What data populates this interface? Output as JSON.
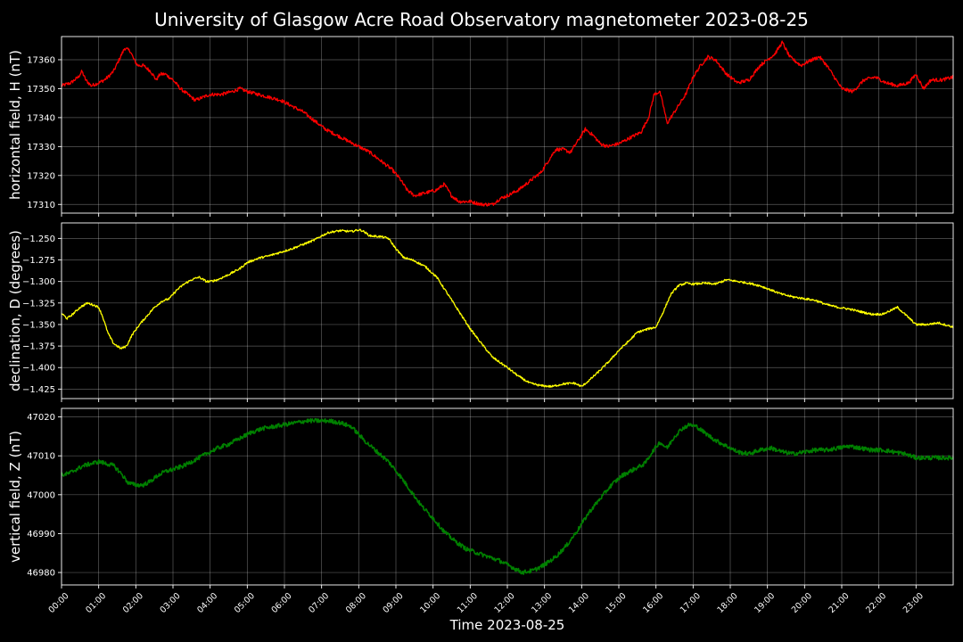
{
  "figure": {
    "title": "University of Glasgow Acre Road Observatory magnetometer 2023-08-25",
    "xlabel": "Time 2023-08-25",
    "background": "#000000",
    "foreground": "#ffffff"
  },
  "chart_data": [
    {
      "type": "line",
      "ylabel": "horizontal field, H (nT)",
      "color": "#ff0000",
      "ylim": [
        17307,
        17368
      ],
      "yticks": [
        17310,
        17320,
        17330,
        17340,
        17350,
        17360
      ],
      "ytick_labels": [
        "17310",
        "17320",
        "17330",
        "17340",
        "17350",
        "17360"
      ],
      "xlim": [
        0,
        24
      ],
      "grid": true,
      "noise": 0.6,
      "series": [
        {
          "x": [
            0,
            0.25,
            0.45,
            0.55,
            0.65,
            0.8,
            1.0,
            1.15,
            1.25,
            1.4,
            1.55,
            1.7,
            1.85,
            1.95,
            2.05,
            2.2,
            2.4,
            2.55,
            2.65,
            2.8,
            3.0,
            3.2,
            3.4,
            3.6,
            3.8,
            4.0,
            4.3,
            4.6,
            4.8,
            5.0,
            5.3,
            5.6,
            5.9,
            6.2,
            6.5,
            6.8,
            7.1,
            7.4,
            7.7,
            8.0,
            8.3,
            8.6,
            8.9,
            9.1,
            9.3,
            9.5,
            9.8,
            10.1,
            10.3,
            10.5,
            10.7,
            11.0,
            11.3,
            11.6,
            11.8,
            12.0,
            12.3,
            12.6,
            12.9,
            13.1,
            13.3,
            13.5,
            13.7,
            13.9,
            14.1,
            14.3,
            14.5,
            14.7,
            15.0,
            15.3,
            15.6,
            15.8,
            15.95,
            16.1,
            16.2,
            16.3,
            16.5,
            16.8,
            17.0,
            17.2,
            17.4,
            17.6,
            17.9,
            18.2,
            18.5,
            18.8,
            19.0,
            19.2,
            19.4,
            19.6,
            19.9,
            20.2,
            20.4,
            20.6,
            20.8,
            21.0,
            21.3,
            21.6,
            21.9,
            22.2,
            22.5,
            22.8,
            23.0,
            23.2,
            23.4,
            23.7,
            24.0
          ],
          "y": [
            17351,
            17352,
            17354,
            17356,
            17353,
            17351,
            17352,
            17353,
            17354,
            17356,
            17360,
            17364,
            17363,
            17360,
            17358,
            17358,
            17356,
            17353,
            17355,
            17355,
            17353,
            17350,
            17348,
            17346,
            17347,
            17348,
            17348,
            17349,
            17350,
            17349,
            17348,
            17347,
            17346,
            17344,
            17342,
            17339,
            17336,
            17334,
            17332,
            17330,
            17328,
            17325,
            17322,
            17319,
            17315,
            17313,
            17314,
            17315,
            17317,
            17313,
            17311,
            17311,
            17310,
            17310,
            17312,
            17313,
            17315,
            17318,
            17321,
            17325,
            17329,
            17329,
            17328,
            17332,
            17336,
            17334,
            17331,
            17330,
            17331,
            17333,
            17335,
            17340,
            17348,
            17349,
            17344,
            17338,
            17342,
            17348,
            17354,
            17358,
            17361,
            17360,
            17355,
            17352,
            17353,
            17358,
            17360,
            17362,
            17366,
            17361,
            17358,
            17360,
            17361,
            17358,
            17354,
            17350,
            17349,
            17353,
            17354,
            17352,
            17351,
            17352,
            17355,
            17350,
            17353,
            17353,
            17354
          ]
        }
      ]
    },
    {
      "type": "line",
      "ylabel": "declination, D (degrees)",
      "color": "#ffff00",
      "ylim": [
        -1.436,
        -1.232
      ],
      "yticks": [
        -1.425,
        -1.4,
        -1.375,
        -1.35,
        -1.325,
        -1.3,
        -1.275,
        -1.25
      ],
      "ytick_labels": [
        "−1.425",
        "−1.400",
        "−1.375",
        "−1.350",
        "−1.325",
        "−1.300",
        "−1.275",
        "−1.250"
      ],
      "xlim": [
        0,
        24
      ],
      "grid": true,
      "noise": 0.0012,
      "series": [
        {
          "x": [
            0,
            0.15,
            0.3,
            0.5,
            0.7,
            0.9,
            1.0,
            1.1,
            1.25,
            1.4,
            1.5,
            1.6,
            1.75,
            1.9,
            2.1,
            2.3,
            2.5,
            2.7,
            2.9,
            3.1,
            3.3,
            3.5,
            3.7,
            3.9,
            4.0,
            4.2,
            4.5,
            4.8,
            5.0,
            5.3,
            5.6,
            5.9,
            6.2,
            6.5,
            6.8,
            7.0,
            7.2,
            7.5,
            7.8,
            8.0,
            8.1,
            8.3,
            8.6,
            8.8,
            9.0,
            9.2,
            9.5,
            9.8,
            10.1,
            10.4,
            10.7,
            11.0,
            11.3,
            11.6,
            12.0,
            12.3,
            12.6,
            12.9,
            13.2,
            13.5,
            13.8,
            14.0,
            14.2,
            14.5,
            14.8,
            15.0,
            15.3,
            15.5,
            15.8,
            16.0,
            16.2,
            16.4,
            16.6,
            16.8,
            17.0,
            17.3,
            17.6,
            17.9,
            18.2,
            18.5,
            18.8,
            19.1,
            19.4,
            19.7,
            20.0,
            20.3,
            20.6,
            20.9,
            21.2,
            21.5,
            21.8,
            22.1,
            22.3,
            22.5,
            22.7,
            23.0,
            23.3,
            23.6,
            24.0
          ],
          "y": [
            -1.337,
            -1.343,
            -1.338,
            -1.33,
            -1.325,
            -1.328,
            -1.33,
            -1.34,
            -1.36,
            -1.372,
            -1.375,
            -1.378,
            -1.375,
            -1.362,
            -1.35,
            -1.34,
            -1.33,
            -1.323,
            -1.32,
            -1.31,
            -1.303,
            -1.298,
            -1.295,
            -1.3,
            -1.3,
            -1.298,
            -1.292,
            -1.285,
            -1.278,
            -1.273,
            -1.27,
            -1.266,
            -1.262,
            -1.257,
            -1.252,
            -1.247,
            -1.243,
            -1.241,
            -1.242,
            -1.24,
            -1.241,
            -1.247,
            -1.248,
            -1.25,
            -1.262,
            -1.272,
            -1.276,
            -1.283,
            -1.295,
            -1.315,
            -1.335,
            -1.355,
            -1.372,
            -1.388,
            -1.4,
            -1.41,
            -1.418,
            -1.421,
            -1.422,
            -1.419,
            -1.418,
            -1.422,
            -1.415,
            -1.403,
            -1.39,
            -1.38,
            -1.368,
            -1.359,
            -1.355,
            -1.353,
            -1.335,
            -1.315,
            -1.305,
            -1.302,
            -1.303,
            -1.302,
            -1.303,
            -1.298,
            -1.3,
            -1.302,
            -1.305,
            -1.31,
            -1.315,
            -1.318,
            -1.32,
            -1.322,
            -1.327,
            -1.33,
            -1.332,
            -1.335,
            -1.338,
            -1.338,
            -1.334,
            -1.33,
            -1.338,
            -1.35,
            -1.35,
            -1.348,
            -1.353
          ]
        }
      ]
    },
    {
      "type": "line",
      "ylabel": "vertical field, Z (nT)",
      "color": "#008000",
      "ylim": [
        46976.8,
        47022.2
      ],
      "yticks": [
        46980,
        46990,
        47000,
        47010,
        47020
      ],
      "ytick_labels": [
        "46980",
        "46990",
        "47000",
        "47010",
        "47020"
      ],
      "xlim": [
        0,
        24
      ],
      "grid": true,
      "noise": 0.55,
      "series": [
        {
          "x": [
            0,
            0.2,
            0.4,
            0.6,
            0.8,
            1.0,
            1.2,
            1.4,
            1.6,
            1.8,
            2.0,
            2.2,
            2.4,
            2.6,
            2.8,
            3.0,
            3.3,
            3.6,
            3.9,
            4.2,
            4.5,
            4.8,
            5.1,
            5.4,
            5.7,
            6.0,
            6.3,
            6.6,
            6.9,
            7.2,
            7.5,
            7.8,
            8.0,
            8.2,
            8.5,
            8.8,
            9.1,
            9.4,
            9.7,
            10.0,
            10.3,
            10.6,
            10.9,
            11.2,
            11.5,
            11.8,
            12.1,
            12.4,
            12.7,
            13.0,
            13.3,
            13.6,
            13.9,
            14.2,
            14.5,
            14.8,
            15.1,
            15.4,
            15.7,
            15.9,
            16.1,
            16.3,
            16.5,
            16.7,
            16.9,
            17.1,
            17.3,
            17.6,
            17.9,
            18.2,
            18.5,
            18.8,
            19.1,
            19.4,
            19.7,
            20.0,
            20.3,
            20.6,
            20.9,
            21.2,
            21.5,
            21.8,
            22.1,
            22.4,
            22.7,
            23.0,
            23.3,
            23.6,
            24.0
          ],
          "y": [
            47005,
            47005.5,
            47006.5,
            47007.5,
            47008,
            47008.5,
            47008,
            47007.5,
            47005.5,
            47003,
            47002.5,
            47002.5,
            47003.5,
            47005,
            47006,
            47006.5,
            47007.5,
            47009,
            47010.5,
            47012,
            47013,
            47014.5,
            47016,
            47017,
            47017.5,
            47018,
            47018.5,
            47019,
            47019,
            47019,
            47018.5,
            47017.5,
            47015.5,
            47013.5,
            47011,
            47008.5,
            47005,
            47001,
            46997,
            46994,
            46990.5,
            46988,
            46986,
            46985,
            46984,
            46983,
            46981.5,
            46980,
            46980.5,
            46982,
            46984,
            46987,
            46991,
            46995.5,
            46999,
            47002.5,
            47005,
            47006.5,
            47008,
            47011,
            47013.5,
            47012,
            47015,
            47017,
            47018,
            47017.5,
            47016,
            47014,
            47012.5,
            47011,
            47010.5,
            47011.5,
            47012,
            47011,
            47010.5,
            47011,
            47011.5,
            47011.5,
            47012,
            47012.5,
            47012,
            47011.5,
            47011.5,
            47011,
            47010.5,
            47009.5,
            47009.5,
            47009.5,
            47009.5
          ]
        }
      ]
    }
  ],
  "x_axis": {
    "tick_labels": [
      "00:00",
      "01:00",
      "02:00",
      "03:00",
      "04:00",
      "05:00",
      "06:00",
      "07:00",
      "08:00",
      "09:00",
      "10:00",
      "11:00",
      "12:00",
      "13:00",
      "14:00",
      "15:00",
      "16:00",
      "17:00",
      "18:00",
      "19:00",
      "20:00",
      "21:00",
      "22:00",
      "23:00"
    ]
  }
}
